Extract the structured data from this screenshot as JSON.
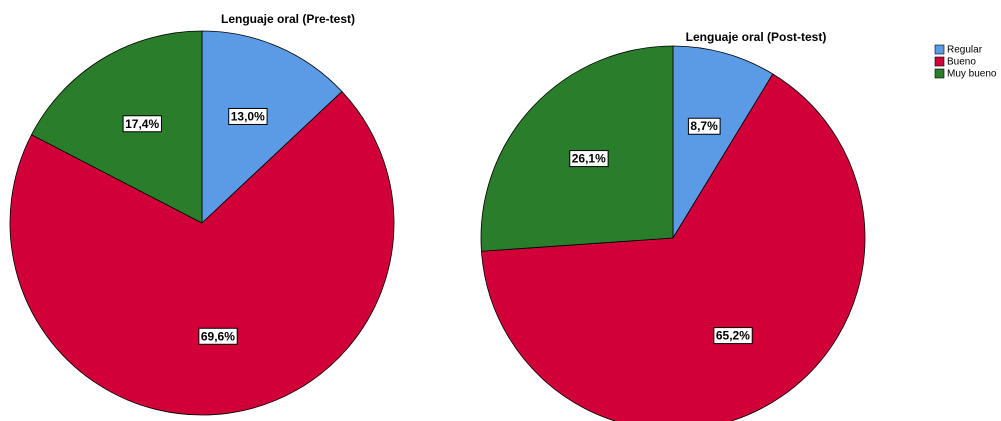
{
  "chart_data": [
    {
      "type": "pie",
      "title": "Lenguaje oral (Pre-test)",
      "categories": [
        "Regular",
        "Bueno",
        "Muy bueno"
      ],
      "values": [
        13.0,
        69.6,
        17.4
      ],
      "value_labels": [
        "13,0%",
        "69,6%",
        "17,4%"
      ],
      "colors": [
        "#5b9be6",
        "#d10038",
        "#2a7d2a"
      ]
    },
    {
      "type": "pie",
      "title": "Lenguaje oral (Post-test)",
      "categories": [
        "Regular",
        "Bueno",
        "Muy bueno"
      ],
      "values": [
        8.7,
        65.2,
        26.1
      ],
      "value_labels": [
        "8,7%",
        "65,2%",
        "26,1%"
      ],
      "colors": [
        "#5b9be6",
        "#d10038",
        "#2a7d2a"
      ]
    }
  ]
}
